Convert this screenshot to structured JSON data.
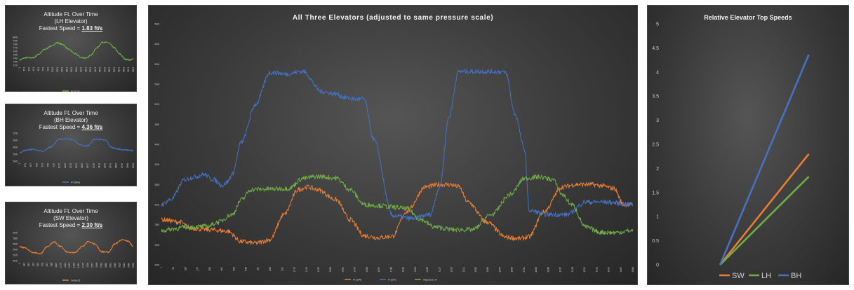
{
  "chart_data": [
    {
      "id": "lh",
      "type": "line",
      "title_line1": "Altitude Ft. Over Time",
      "title_line2": "(LH Elevator)",
      "speed_prefix": "Fastest Speed = ",
      "speed_value": "1.83 ft/s",
      "ylim": [
        720,
        800
      ],
      "yticks": [
        720,
        730,
        740,
        750,
        760,
        770,
        780,
        790,
        800
      ],
      "xticks": [
        "1",
        "151",
        "301",
        "451",
        "601",
        "751",
        "901",
        "1051",
        "1201",
        "1351",
        "1501",
        "1651",
        "1801",
        "1951",
        "2101",
        "2251",
        "2401",
        "2551",
        "2701",
        "2851",
        "3001",
        "3151",
        "3301",
        "3451",
        "3601"
      ],
      "series": [
        {
          "name": "Ft (LH)",
          "color": "#70ad47",
          "x": [
            0,
            0.05,
            0.12,
            0.17,
            0.22,
            0.28,
            0.33,
            0.38,
            0.43,
            0.49,
            0.54,
            0.59,
            0.63,
            0.68,
            0.73,
            0.78,
            0.83,
            0.88,
            0.93,
            0.97,
            1.0
          ],
          "values": [
            735,
            741,
            741,
            752,
            765,
            775,
            784,
            779,
            765,
            752,
            742,
            740,
            750,
            770,
            786,
            784,
            770,
            752,
            737,
            735,
            737
          ]
        }
      ]
    },
    {
      "id": "bh",
      "type": "line",
      "title_line1": "Altitude Ft. Over Time",
      "title_line2": "(BH Elevator)",
      "speed_prefix": "Fastest Speed = ",
      "speed_value": "4.36 ft/s",
      "ylim": [
        500,
        700
      ],
      "yticks": [
        500,
        550,
        600,
        650,
        700
      ],
      "xticks": [
        "1",
        "154",
        "307",
        "460",
        "613",
        "766",
        "919",
        "1072",
        "1225",
        "1378",
        "1531",
        "1684",
        "1837",
        "1990",
        "2143",
        "2296",
        "2449",
        "2602",
        "2755",
        "2908",
        "3061"
      ],
      "series": [
        {
          "name": "Ft (BH)",
          "color": "#4472c4",
          "x": [
            0,
            0.04,
            0.12,
            0.2,
            0.27,
            0.35,
            0.42,
            0.47,
            0.53,
            0.58,
            0.6,
            0.66,
            0.71,
            0.76,
            0.8,
            0.87,
            0.92,
            1.0
          ],
          "values": [
            560,
            575,
            585,
            570,
            600,
            655,
            660,
            652,
            620,
            605,
            610,
            655,
            655,
            650,
            600,
            585,
            580,
            575
          ]
        }
      ]
    },
    {
      "id": "sw",
      "type": "line",
      "title_line1": "Altitude Ft. Over Time",
      "title_line2": "(SW Elevator)",
      "speed_prefix": "Fastest Speed = ",
      "speed_value": "2.30 ft/s",
      "ylim": [
        500,
        600
      ],
      "yticks": [
        500,
        520,
        540,
        560,
        580,
        600
      ],
      "xticks": [
        "1",
        "142",
        "283",
        "424",
        "565",
        "706",
        "847",
        "988",
        "1129",
        "1270",
        "1411",
        "1552",
        "1693",
        "1834",
        "1975",
        "2116",
        "2257",
        "2398",
        "2539",
        "2680",
        "2821",
        "2962",
        "3103",
        "3244",
        "3385",
        "3526"
      ],
      "series": [
        {
          "name": "Series1",
          "color": "#ed7d31",
          "x": [
            0,
            0.05,
            0.12,
            0.18,
            0.25,
            0.3,
            0.36,
            0.42,
            0.48,
            0.55,
            0.6,
            0.66,
            0.72,
            0.78,
            0.84,
            0.9,
            0.95,
            1.0
          ],
          "values": [
            550,
            545,
            528,
            524,
            552,
            567,
            551,
            530,
            528,
            550,
            567,
            560,
            532,
            530,
            560,
            574,
            570,
            552
          ]
        }
      ]
    },
    {
      "id": "all",
      "type": "line",
      "title": "All Three Elevators (adjusted to same pressure scale)",
      "ylim": [
        200,
        680
      ],
      "yticks": [
        200,
        240,
        280,
        320,
        360,
        400,
        440,
        480,
        520,
        560,
        600,
        640,
        680
      ],
      "xticks": [
        "1",
        "93",
        "185",
        "277",
        "369",
        "461",
        "553",
        "645",
        "737",
        "829",
        "921",
        "1013",
        "1105",
        "1197",
        "1289",
        "1381",
        "1473",
        "1565",
        "1657",
        "1749",
        "1841",
        "1933",
        "2025",
        "2117",
        "2209",
        "2301",
        "2393",
        "2485",
        "2577",
        "2669",
        "2761",
        "2853",
        "2945",
        "3037",
        "3129",
        "3221",
        "3313",
        "3405",
        "3497",
        "3589"
      ],
      "series": [
        {
          "name": "Ft (SW)",
          "color": "#ed7d31",
          "x": [
            0,
            0.04,
            0.06,
            0.1,
            0.14,
            0.17,
            0.2,
            0.23,
            0.26,
            0.29,
            0.31,
            0.33,
            0.37,
            0.4,
            0.43,
            0.46,
            0.49,
            0.52,
            0.56,
            0.59,
            0.61,
            0.63,
            0.65,
            0.69,
            0.73,
            0.76,
            0.78,
            0.81,
            0.85,
            0.88,
            0.91,
            0.93,
            0.96,
            0.98,
            1.0
          ],
          "values": [
            290,
            285,
            273,
            270,
            267,
            246,
            243,
            250,
            300,
            350,
            355,
            350,
            330,
            290,
            258,
            254,
            257,
            306,
            355,
            360,
            360,
            356,
            325,
            285,
            255,
            252,
            256,
            305,
            355,
            360,
            360,
            358,
            352,
            320,
            320
          ]
        },
        {
          "name": "Ft (BH)",
          "color": "#4472c4",
          "x": [
            0,
            0.02,
            0.05,
            0.07,
            0.09,
            0.11,
            0.13,
            0.14,
            0.15,
            0.17,
            0.2,
            0.23,
            0.25,
            0.26,
            0.3,
            0.34,
            0.37,
            0.39,
            0.41,
            0.43,
            0.45,
            0.49,
            0.53,
            0.57,
            0.59,
            0.61,
            0.63,
            0.66,
            0.69,
            0.71,
            0.73,
            0.75,
            0.77,
            0.78,
            0.82,
            0.86,
            0.9,
            0.94,
            1.0
          ],
          "values": [
            320,
            330,
            370,
            375,
            380,
            370,
            358,
            365,
            380,
            445,
            520,
            583,
            582,
            580,
            585,
            545,
            540,
            533,
            530,
            530,
            450,
            298,
            292,
            300,
            355,
            495,
            585,
            585,
            585,
            585,
            583,
            500,
            430,
            308,
            300,
            300,
            325,
            325,
            320
          ]
        },
        {
          "name": "Adjusted LH",
          "color": "#70ad47",
          "x": [
            0,
            0.03,
            0.05,
            0.08,
            0.1,
            0.12,
            0.15,
            0.17,
            0.19,
            0.23,
            0.27,
            0.3,
            0.33,
            0.37,
            0.4,
            0.43,
            0.46,
            0.49,
            0.52,
            0.55,
            0.58,
            0.62,
            0.66,
            0.7,
            0.74,
            0.77,
            0.8,
            0.83,
            0.85,
            0.87,
            0.9,
            0.93,
            0.96,
            1.0
          ],
          "values": [
            268,
            272,
            275,
            276,
            277,
            285,
            300,
            330,
            350,
            351,
            352,
            372,
            376,
            373,
            350,
            320,
            318,
            315,
            312,
            290,
            275,
            270,
            270,
            300,
            340,
            372,
            375,
            370,
            340,
            320,
            275,
            265,
            264,
            268
          ]
        }
      ]
    },
    {
      "id": "speeds",
      "type": "line",
      "title": "Relative Elevator Top Speeds",
      "ylim": [
        0,
        5
      ],
      "yticks": [
        "0",
        "0.5",
        "1",
        "1.5",
        "2",
        "2.5",
        "3",
        "3.5",
        "4",
        "4.5",
        "5"
      ],
      "series": [
        {
          "name": "SW",
          "color": "#ed7d31",
          "values": [
            0,
            2.3
          ]
        },
        {
          "name": "LH",
          "color": "#70ad47",
          "values": [
            0,
            1.83
          ]
        },
        {
          "name": "BH",
          "color": "#4472c4",
          "values": [
            0,
            4.36
          ]
        }
      ]
    }
  ]
}
